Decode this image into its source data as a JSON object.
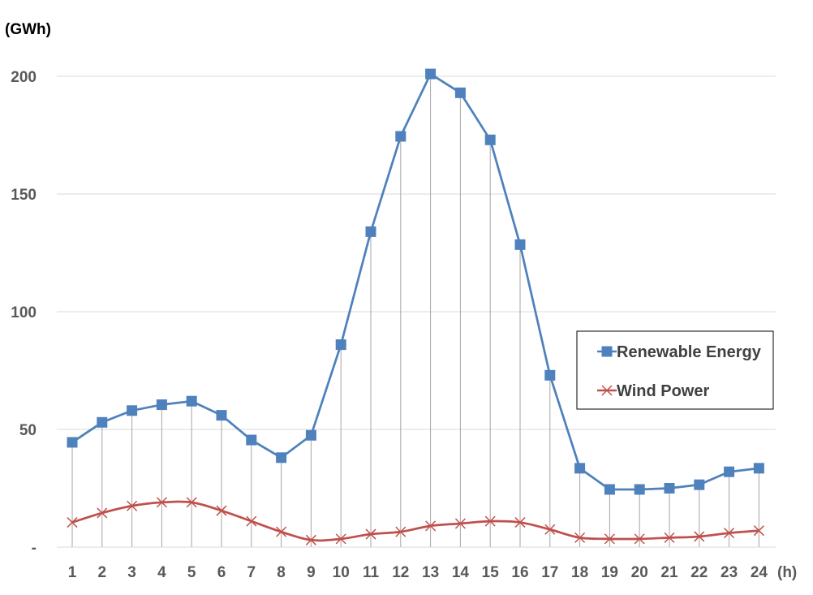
{
  "chart_data": {
    "type": "line",
    "y_unit_label": "(GWh)",
    "x_unit_label": "(h)",
    "x": [
      "1",
      "2",
      "3",
      "4",
      "5",
      "6",
      "7",
      "8",
      "9",
      "10",
      "11",
      "12",
      "13",
      "14",
      "15",
      "16",
      "17",
      "18",
      "19",
      "20",
      "21",
      "22",
      "23",
      "24"
    ],
    "y_ticks": [
      {
        "value": 0,
        "label": "-"
      },
      {
        "value": 50,
        "label": "50"
      },
      {
        "value": 100,
        "label": "100"
      },
      {
        "value": 150,
        "label": "150"
      },
      {
        "value": 200,
        "label": "200"
      }
    ],
    "ylim": [
      0,
      200
    ],
    "grid": true,
    "drop_lines": true,
    "legend_position": "right",
    "series": [
      {
        "name": "Renewable Energy",
        "color": "#4f81bd",
        "marker": "square",
        "smooth": false,
        "values": [
          44.5,
          53,
          58,
          60.5,
          62,
          56,
          45.5,
          38,
          47.5,
          86,
          134,
          174.5,
          201,
          193,
          173,
          128.5,
          73,
          33.5,
          24.5,
          24.5,
          25,
          26.5,
          32,
          33.5
        ]
      },
      {
        "name": "Wind Power",
        "color": "#c0504d",
        "marker": "x",
        "smooth": true,
        "values": [
          10.5,
          14.5,
          17.5,
          19,
          19,
          15.5,
          11,
          6.5,
          3,
          3.5,
          5.5,
          6.5,
          9,
          10,
          11,
          10.5,
          7.5,
          4,
          3.5,
          3.5,
          4,
          4.5,
          6,
          7
        ]
      }
    ]
  }
}
